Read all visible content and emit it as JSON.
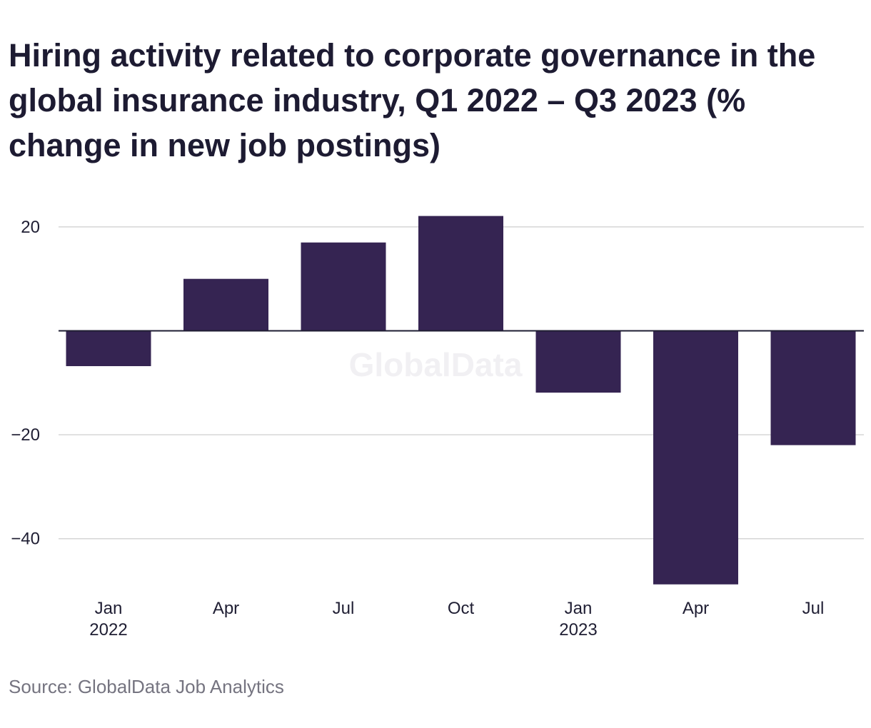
{
  "chart_data": {
    "type": "bar",
    "title": "Hiring activity related to corporate governance in the global insurance industry, Q1 2022 – Q3 2023 (% change in new job postings)",
    "categories": [
      {
        "label": "Jan",
        "sublabel": "2022"
      },
      {
        "label": "Apr",
        "sublabel": ""
      },
      {
        "label": "Jul",
        "sublabel": ""
      },
      {
        "label": "Oct",
        "sublabel": ""
      },
      {
        "label": "Jan",
        "sublabel": "2023"
      },
      {
        "label": "Apr",
        "sublabel": ""
      },
      {
        "label": "Jul",
        "sublabel": ""
      }
    ],
    "values": [
      -6.8,
      10.0,
      17.0,
      22.1,
      -11.9,
      -48.8,
      -22.0
    ],
    "yticks": [
      20,
      -20,
      -40
    ],
    "ytick_labels": [
      "20",
      "−20",
      "−40"
    ],
    "ylim": [
      -50,
      25
    ],
    "grid": true,
    "bar_color": "#352452",
    "watermark": "GlobalData",
    "source": "Source: GlobalData Job Analytics"
  }
}
